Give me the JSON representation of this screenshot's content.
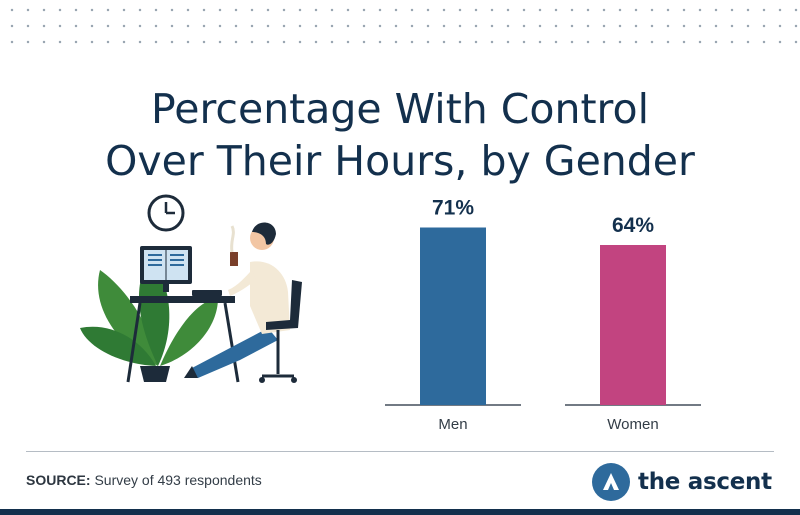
{
  "title": {
    "line1": "Percentage With Control",
    "line2": "Over Their Hours, by Gender"
  },
  "chart_data": {
    "type": "bar",
    "categories": [
      "Men",
      "Women"
    ],
    "values": [
      71,
      64
    ],
    "value_labels": [
      "71%",
      "64%"
    ],
    "colors": [
      "#2e6a9c",
      "#c24480"
    ],
    "ylim": [
      0,
      100
    ],
    "grid": false,
    "legend": "none"
  },
  "footer": {
    "source_label": "SOURCE:",
    "source_text": "Survey of 493 respondents",
    "logo_text": "the ascent",
    "logo_icon": "ascent-logo-icon"
  },
  "illustration": {
    "icon": "person-at-desk-illustration",
    "clock_icon": "clock-icon"
  },
  "colors": {
    "navy": "#13304d",
    "men": "#2e6a9c",
    "women": "#c24480"
  }
}
